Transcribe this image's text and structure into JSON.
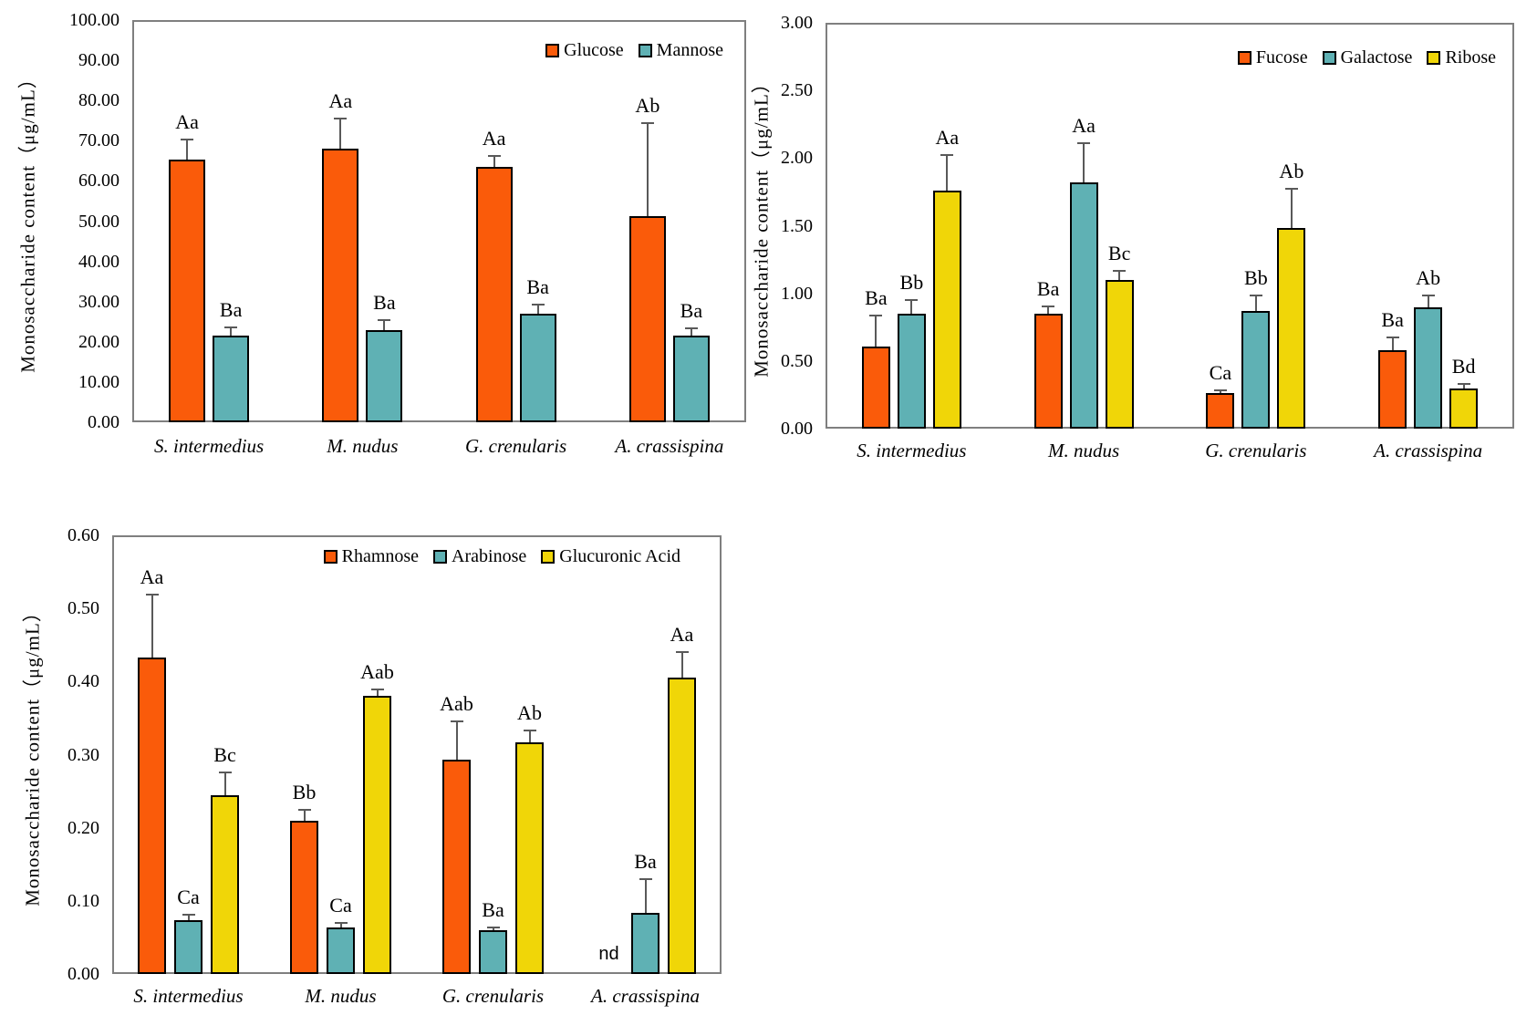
{
  "page": {
    "background": "#ffffff"
  },
  "colors": {
    "orange": "#FA5B0A",
    "teal": "#5FB1B4",
    "yellow": "#F0D608",
    "error_bar": "#595959",
    "plot_border": "#7F7F7F",
    "bar_border": "#000000",
    "text": "#000000"
  },
  "chart_data": [
    {
      "type": "bar",
      "position": "top-left",
      "ylabel": "Monosaccharide content（μg/mL）",
      "ylim": [
        0,
        100
      ],
      "ytick_step": 10,
      "ytick_labels": [
        "0.00",
        "10.00",
        "20.00",
        "30.00",
        "40.00",
        "50.00",
        "60.00",
        "70.00",
        "80.00",
        "90.00",
        "100.00"
      ],
      "categories": [
        "S. intermedius",
        "M. nudus",
        "G. crenularis",
        "A. crassispina"
      ],
      "grid": "off",
      "legend_position": "top-right-inside",
      "series": [
        {
          "name": "Glucose",
          "color": "orange",
          "values": [
            65.2,
            68.0,
            63.5,
            51.3
          ],
          "errors": [
            5.3,
            7.8,
            3.0,
            23.3
          ],
          "letters": [
            "Aa",
            "Aa",
            "Aa",
            "Ab"
          ]
        },
        {
          "name": "Mannose",
          "color": "teal",
          "values": [
            21.5,
            23.0,
            26.9,
            21.5
          ],
          "errors": [
            2.3,
            2.7,
            2.5,
            2.0
          ],
          "letters": [
            "Ba",
            "Ba",
            "Ba",
            "Ba"
          ]
        }
      ],
      "annotations": []
    },
    {
      "type": "bar",
      "position": "top-right",
      "ylabel": "Monosaccharide content（μg/mL）",
      "ylim": [
        0,
        3
      ],
      "ytick_step": 0.5,
      "ytick_labels": [
        "0.00",
        "0.50",
        "1.00",
        "1.50",
        "2.00",
        "2.50",
        "3.00"
      ],
      "categories": [
        "S. intermedius",
        "M. nudus",
        "G. crenularis",
        "A. crassispina"
      ],
      "grid": "off",
      "legend_position": "top-right-inside",
      "series": [
        {
          "name": "Fucose",
          "color": "orange",
          "values": [
            0.61,
            0.85,
            0.26,
            0.58
          ],
          "errors": [
            0.23,
            0.06,
            0.03,
            0.1
          ],
          "letters": [
            "Ba",
            "Ba",
            "Ca",
            "Ba"
          ]
        },
        {
          "name": "Galactose",
          "color": "teal",
          "values": [
            0.85,
            1.82,
            0.87,
            0.9
          ],
          "errors": [
            0.11,
            0.3,
            0.12,
            0.09
          ],
          "letters": [
            "Bb",
            "Aa",
            "Bb",
            "Ab"
          ]
        },
        {
          "name": "Ribose",
          "color": "yellow",
          "values": [
            1.76,
            1.1,
            1.48,
            0.3
          ],
          "errors": [
            0.27,
            0.07,
            0.3,
            0.04
          ],
          "letters": [
            "Aa",
            "Bc",
            "Ab",
            "Bd"
          ]
        }
      ],
      "annotations": []
    },
    {
      "type": "bar",
      "position": "bottom-left",
      "ylabel": "Monosaccharide content（μg/mL）",
      "ylim": [
        0,
        0.6
      ],
      "ytick_step": 0.1,
      "ytick_labels": [
        "0.00",
        "0.10",
        "0.20",
        "0.30",
        "0.40",
        "0.50",
        "0.60"
      ],
      "categories": [
        "S. intermedius",
        "M. nudus",
        "G. crenularis",
        "A. crassispina"
      ],
      "grid": "off",
      "legend_position": "top-right-inside",
      "series": [
        {
          "name": "Rhamnose",
          "color": "orange",
          "values": [
            0.433,
            0.209,
            0.293,
            null
          ],
          "errors": [
            0.087,
            0.017,
            0.054,
            null
          ],
          "letters": [
            "Aa",
            "Bb",
            "Aab",
            null
          ]
        },
        {
          "name": "Arabinose",
          "color": "teal",
          "values": [
            0.074,
            0.064,
            0.06,
            0.084
          ],
          "errors": [
            0.008,
            0.007,
            0.005,
            0.047
          ],
          "letters": [
            "Ca",
            "Ca",
            "Ba",
            "Ba"
          ]
        },
        {
          "name": "Glucuronic Acid",
          "color": "yellow",
          "values": [
            0.244,
            0.38,
            0.317,
            0.405
          ],
          "errors": [
            0.033,
            0.01,
            0.017,
            0.036
          ],
          "letters": [
            "Bc",
            "Aab",
            "Ab",
            "Aa"
          ]
        }
      ],
      "annotations": [
        {
          "text": "nd",
          "series_index": 0,
          "category_index": 3
        }
      ]
    }
  ]
}
